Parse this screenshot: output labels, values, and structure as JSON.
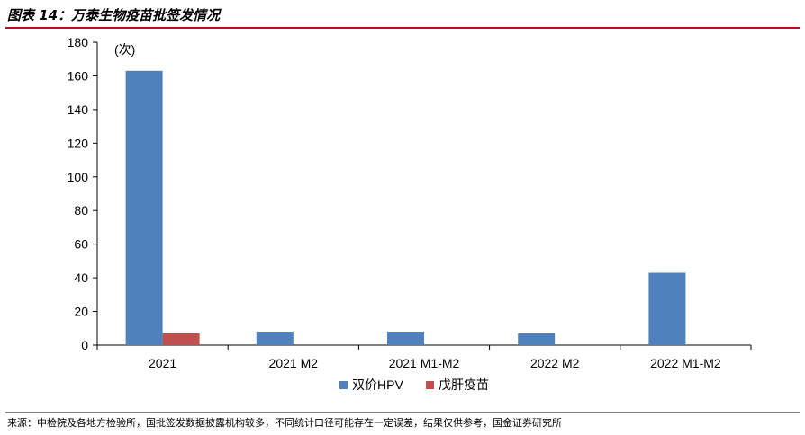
{
  "header": {
    "title": "图表 14：万泰生物疫苗批签发情况"
  },
  "footer": {
    "source": "来源：中检院及各地方检验所，国批签发数据披露机构较多，不同统计口径可能存在一定误差，结果仅供参考，国金证券研究所"
  },
  "chart_data": {
    "type": "bar",
    "unit": "(次)",
    "categories": [
      "2021",
      "2021 M2",
      "2021 M1-M2",
      "2022 M2",
      "2022 M1-M2"
    ],
    "series": [
      {
        "name": "双价HPV",
        "color": "#4f81bd",
        "values": [
          163,
          8,
          8,
          7,
          43
        ]
      },
      {
        "name": "戊肝疫苗",
        "color": "#c0504d",
        "values": [
          7,
          0,
          0,
          0,
          0
        ]
      }
    ],
    "ylim": [
      0,
      180
    ],
    "yticks": [
      0,
      20,
      40,
      60,
      80,
      100,
      120,
      140,
      160,
      180
    ],
    "grid": false,
    "legend_position": "bottom"
  }
}
